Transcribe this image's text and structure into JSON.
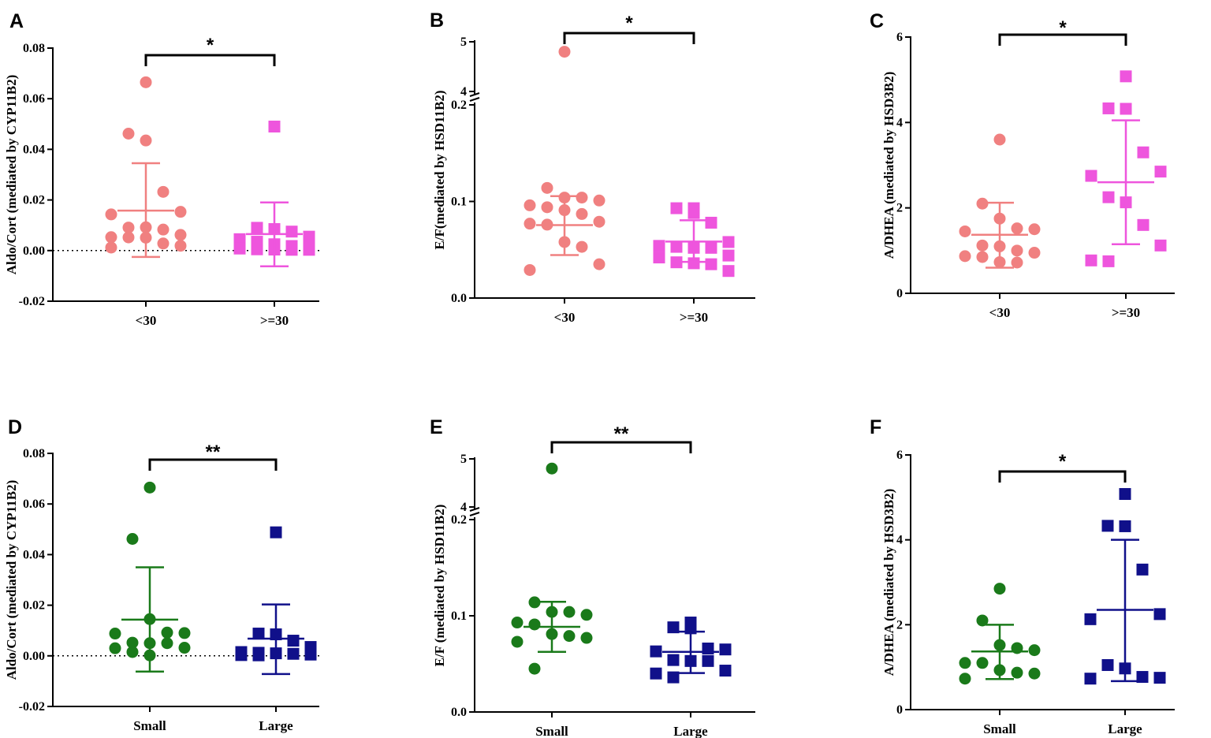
{
  "colors": {
    "salmon": "#f08080",
    "magenta": "#ee55dd",
    "green": "#1a7a1a",
    "navy": "#10108a",
    "axis": "#000000"
  },
  "chart_data": [
    {
      "panel": "A",
      "type": "scatter",
      "ylabel": "Aldo/Cort (mediated by CYP11B2)",
      "ylim": [
        -0.02,
        0.08
      ],
      "yticks": [
        "-0.02",
        "0.00",
        "0.02",
        "0.04",
        "0.06",
        "0.08"
      ],
      "zero_line": true,
      "significance": "*",
      "groups": [
        {
          "name": "<30",
          "marker": "circle",
          "color": "#f08080",
          "mean": 0.0158,
          "err_low": -0.0025,
          "err_high": 0.0345,
          "points": [
            0.0665,
            0.0462,
            0.0435,
            0.0232,
            0.0153,
            0.0143,
            0.0091,
            0.0092,
            0.0083,
            0.0062,
            0.0053,
            0.0052,
            0.0051,
            0.0028,
            0.0019,
            0.0012
          ]
        },
        {
          "name": ">=30",
          "marker": "square",
          "color": "#ee55dd",
          "mean": 0.0065,
          "err_low": -0.0062,
          "err_high": 0.019,
          "points": [
            0.049,
            0.009,
            0.0085,
            0.0075,
            0.0055,
            0.0045,
            0.0035,
            0.0025,
            0.0018,
            0.0012,
            0.0008,
            0.0005,
            0.0004,
            0.0003,
            0.0003
          ]
        }
      ]
    },
    {
      "panel": "B",
      "type": "scatter",
      "ylabel": "E/F(mediated by HSD11B2)",
      "ylim": [
        0,
        0.2
      ],
      "broken_axis": {
        "lower_ticks": [
          "0.0",
          "0.1",
          "0.2"
        ],
        "upper_ticks": [
          "4",
          "5"
        ]
      },
      "significance": "*",
      "groups": [
        {
          "name": "<30",
          "marker": "circle",
          "color": "#f08080",
          "mean": 0.0755,
          "err_low": 0.0445,
          "err_high": 0.1055,
          "points": [
            4.8,
            0.114,
            0.104,
            0.104,
            0.101,
            0.096,
            0.094,
            0.091,
            0.087,
            0.079,
            0.077,
            0.076,
            0.058,
            0.053,
            0.035,
            0.029
          ]
        },
        {
          "name": ">=30",
          "marker": "square",
          "color": "#ee55dd",
          "mean": 0.0585,
          "err_low": 0.0375,
          "err_high": 0.0805,
          "points": [
            0.093,
            0.093,
            0.088,
            0.078,
            0.058,
            0.054,
            0.053,
            0.052,
            0.052,
            0.044,
            0.042,
            0.037,
            0.036,
            0.035,
            0.028
          ]
        }
      ]
    },
    {
      "panel": "C",
      "type": "scatter",
      "ylabel": "A/DHEA (mediated by HSD3B2)",
      "ylim": [
        0,
        6
      ],
      "yticks": [
        "0",
        "2",
        "4",
        "6"
      ],
      "significance": "*",
      "groups": [
        {
          "name": "<30",
          "marker": "circle",
          "color": "#f08080",
          "mean": 1.37,
          "err_low": 0.6,
          "err_high": 2.12,
          "points": [
            3.6,
            2.1,
            1.75,
            1.52,
            1.5,
            1.45,
            1.12,
            1.1,
            1.0,
            0.95,
            0.87,
            0.85,
            0.73,
            0.72
          ]
        },
        {
          "name": ">=30",
          "marker": "square",
          "color": "#ee55dd",
          "mean": 2.6,
          "err_low": 1.15,
          "err_high": 4.05,
          "points": [
            5.08,
            4.33,
            4.32,
            3.3,
            2.85,
            2.75,
            2.25,
            2.13,
            1.6,
            1.12,
            0.77,
            0.75
          ]
        }
      ]
    },
    {
      "panel": "D",
      "type": "scatter",
      "ylabel": "Aldo/Cort (mediated by CYP11B2)",
      "ylim": [
        -0.02,
        0.08
      ],
      "yticks": [
        "-0.02",
        "0.00",
        "0.02",
        "0.04",
        "0.06",
        "0.08"
      ],
      "zero_line": true,
      "significance": "**",
      "groups": [
        {
          "name": "Small",
          "marker": "circle",
          "color": "#1a7a1a",
          "mean": 0.0143,
          "err_low": -0.0062,
          "err_high": 0.035,
          "points": [
            0.0665,
            0.0462,
            0.0145,
            0.0092,
            0.009,
            0.0088,
            0.0052,
            0.005,
            0.005,
            0.0032,
            0.003,
            0.0015,
            0.0002
          ]
        },
        {
          "name": "Large",
          "marker": "square",
          "color": "#10108a",
          "mean": 0.0068,
          "err_low": -0.0072,
          "err_high": 0.0203,
          "points": [
            0.0488,
            0.0088,
            0.0085,
            0.006,
            0.0035,
            0.0015,
            0.0012,
            0.001,
            0.0008,
            0.0005,
            0.0003,
            0.0002
          ]
        }
      ]
    },
    {
      "panel": "E",
      "type": "scatter",
      "ylabel": "E/F (mediated by HSD11B2)",
      "ylim": [
        0,
        0.2
      ],
      "broken_axis": {
        "lower_ticks": [
          "0.0",
          "0.1",
          "0.2"
        ],
        "upper_ticks": [
          "4",
          "5"
        ]
      },
      "significance": "**",
      "groups": [
        {
          "name": "Small",
          "marker": "circle",
          "color": "#1a7a1a",
          "mean": 0.0885,
          "err_low": 0.0625,
          "err_high": 0.1145,
          "points": [
            4.8,
            0.114,
            0.104,
            0.104,
            0.101,
            0.093,
            0.091,
            0.081,
            0.079,
            0.077,
            0.073,
            0.045
          ]
        },
        {
          "name": "Large",
          "marker": "square",
          "color": "#10108a",
          "mean": 0.0625,
          "err_low": 0.0405,
          "err_high": 0.0835,
          "points": [
            0.093,
            0.088,
            0.087,
            0.066,
            0.065,
            0.063,
            0.054,
            0.053,
            0.053,
            0.043,
            0.04,
            0.036
          ]
        }
      ]
    },
    {
      "panel": "F",
      "type": "scatter",
      "ylabel": "A/DHEA (mediated by HSD3B2)",
      "ylim": [
        0,
        6
      ],
      "yticks": [
        "0",
        "2",
        "4",
        "6"
      ],
      "significance": "*",
      "groups": [
        {
          "name": "Small",
          "marker": "circle",
          "color": "#1a7a1a",
          "mean": 1.37,
          "err_low": 0.72,
          "err_high": 2.0,
          "points": [
            2.85,
            2.1,
            1.52,
            1.45,
            1.4,
            1.1,
            1.1,
            0.93,
            0.87,
            0.85,
            0.73
          ]
        },
        {
          "name": "Large",
          "marker": "square",
          "color": "#10108a",
          "mean": 2.35,
          "err_low": 0.67,
          "err_high": 4.0,
          "points": [
            5.08,
            4.33,
            4.32,
            3.3,
            2.25,
            2.13,
            1.05,
            0.97,
            0.77,
            0.75,
            0.73
          ]
        }
      ]
    }
  ]
}
